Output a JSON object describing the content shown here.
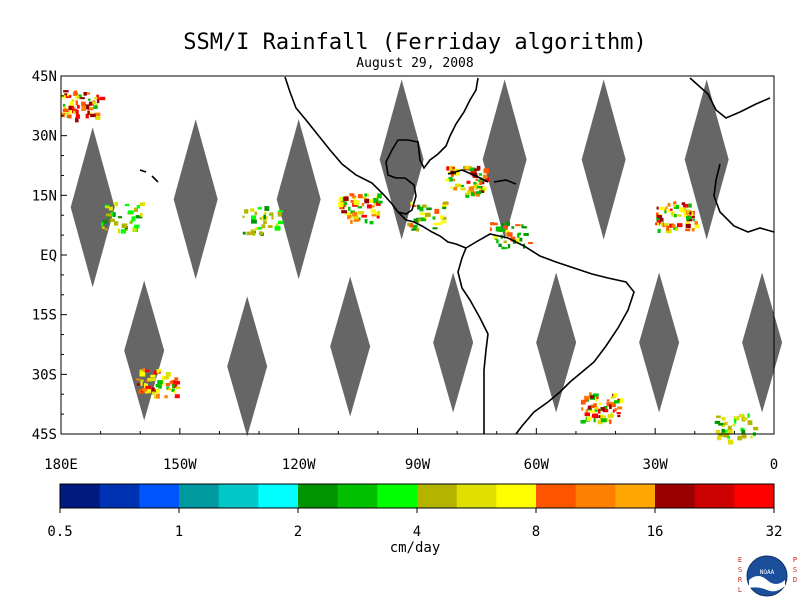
{
  "title": "SSM/I Rainfall (Ferriday algorithm)",
  "subtitle": "August 29, 2008",
  "map": {
    "lat_range": [
      -45,
      45
    ],
    "lon_range": [
      -180,
      0
    ],
    "lat_labels": [
      {
        "lat": 45,
        "label": "45N"
      },
      {
        "lat": 30,
        "label": "30N"
      },
      {
        "lat": 15,
        "label": "15N"
      },
      {
        "lat": 0,
        "label": "EQ"
      },
      {
        "lat": -15,
        "label": "15S"
      },
      {
        "lat": -30,
        "label": "30S"
      },
      {
        "lat": -45,
        "label": "45S"
      }
    ],
    "lon_labels": [
      {
        "lon": -180,
        "label": "180E"
      },
      {
        "lon": -150,
        "label": "150W"
      },
      {
        "lon": -120,
        "label": "120W"
      },
      {
        "lon": -90,
        "label": "90W"
      },
      {
        "lon": -60,
        "label": "60W"
      },
      {
        "lon": -30,
        "label": "30W"
      },
      {
        "lon": 0,
        "label": "0"
      }
    ],
    "swath_gap_color": "#666666",
    "coast_color": "#000000",
    "gaps_north": [
      {
        "lon": -172,
        "lat": 12
      },
      {
        "lon": -146,
        "lat": 14
      },
      {
        "lon": -120,
        "lat": 14
      },
      {
        "lon": -94,
        "lat": 24
      },
      {
        "lon": -68,
        "lat": 24
      },
      {
        "lon": -43,
        "lat": 24
      },
      {
        "lon": -17,
        "lat": 24
      }
    ],
    "gaps_south": [
      {
        "lon": -159,
        "lat": -24
      },
      {
        "lon": -133,
        "lat": -28
      },
      {
        "lon": -107,
        "lat": -23
      },
      {
        "lon": -81,
        "lat": -22
      },
      {
        "lon": -55,
        "lat": -22
      },
      {
        "lon": -29,
        "lat": -22
      },
      {
        "lon": -3,
        "lat": -22
      }
    ],
    "rain_regions": [
      {
        "lon": -156,
        "lat": -32,
        "intensity": "heavy"
      },
      {
        "lon": -105,
        "lat": 12,
        "intensity": "heavy"
      },
      {
        "lon": -88,
        "lat": 10,
        "intensity": "moderate"
      },
      {
        "lon": -78,
        "lat": 19,
        "intensity": "heavy"
      },
      {
        "lon": -67,
        "lat": 5,
        "intensity": "moderate"
      },
      {
        "lon": -44,
        "lat": -38,
        "intensity": "heavy"
      },
      {
        "lon": -25,
        "lat": 10,
        "intensity": "heavy"
      },
      {
        "lon": -165,
        "lat": 10,
        "intensity": "light"
      },
      {
        "lon": -130,
        "lat": 9,
        "intensity": "light"
      },
      {
        "lon": -175,
        "lat": 38,
        "intensity": "heavy"
      },
      {
        "lon": -10,
        "lat": -43,
        "intensity": "light"
      }
    ]
  },
  "legend": {
    "colors": [
      "#001a80",
      "#0033b3",
      "#0055ff",
      "#00999e",
      "#00c8c8",
      "#00ffff",
      "#009400",
      "#00c000",
      "#00ff00",
      "#b3b300",
      "#e0e000",
      "#ffff00",
      "#ff5500",
      "#ff8000",
      "#ffa600",
      "#990000",
      "#cc0000",
      "#ff0000"
    ],
    "labels": [
      "0.5",
      "1",
      "2",
      "4",
      "8",
      "16",
      "32"
    ],
    "unit": "cm/day"
  },
  "logo": {
    "left_letters": "ESRL",
    "right_letters": "PSD",
    "center_text": "NOAA"
  }
}
